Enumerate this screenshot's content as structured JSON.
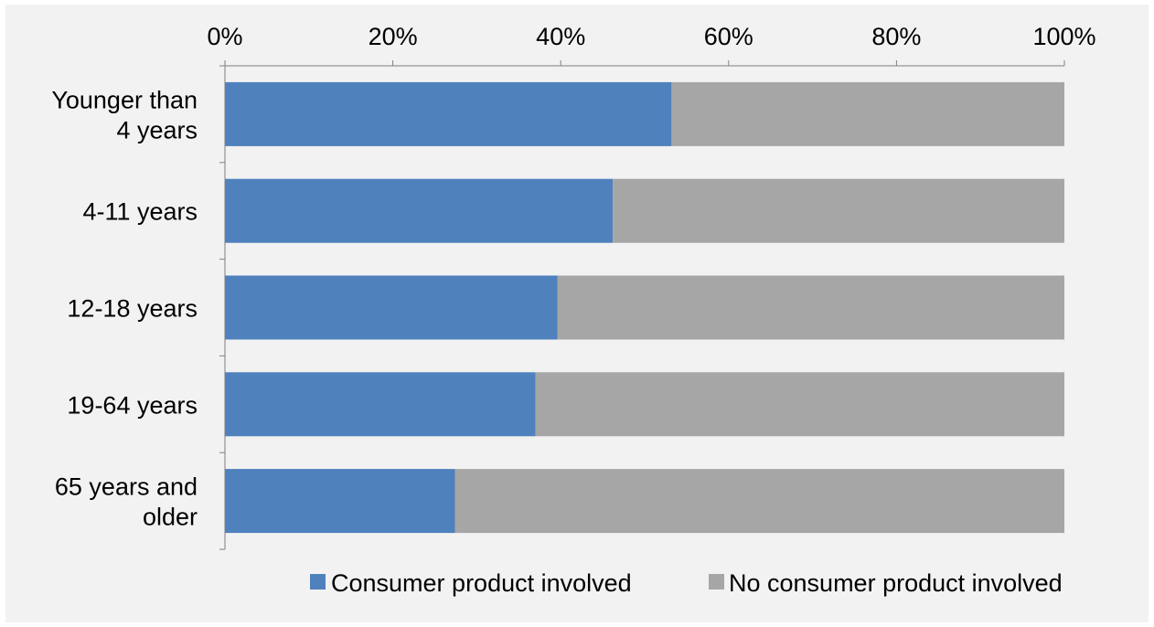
{
  "chart_data": {
    "type": "bar",
    "orientation": "horizontal",
    "stacked": "percent",
    "categories": [
      "Younger than 4 years",
      "4-11 years",
      "12-18 years",
      "19-64 years",
      "65 years and older"
    ],
    "category_label_lines": [
      [
        "Younger than",
        "4 years"
      ],
      [
        "4-11 years"
      ],
      [
        "12-18 years"
      ],
      [
        "19-64 years"
      ],
      [
        "65 years and",
        "older"
      ]
    ],
    "series": [
      {
        "name": "Consumer product involved",
        "values": [
          53.2,
          46.2,
          39.6,
          37.0,
          27.4
        ],
        "color": "#4f81bd"
      },
      {
        "name": "No consumer product involved",
        "values": [
          46.8,
          53.8,
          60.4,
          63.0,
          72.6
        ],
        "color": "#a6a6a6"
      }
    ],
    "xlim": [
      0,
      100
    ],
    "x_ticks": [
      0,
      20,
      40,
      60,
      80,
      100
    ],
    "x_tick_labels": [
      "0%",
      "20%",
      "40%",
      "60%",
      "80%",
      "100%"
    ],
    "x_axis_position": "top",
    "grid": false,
    "legend_position": "bottom-right",
    "background_color": "#f2f2f2",
    "axis_color": "#7f7f7f"
  }
}
